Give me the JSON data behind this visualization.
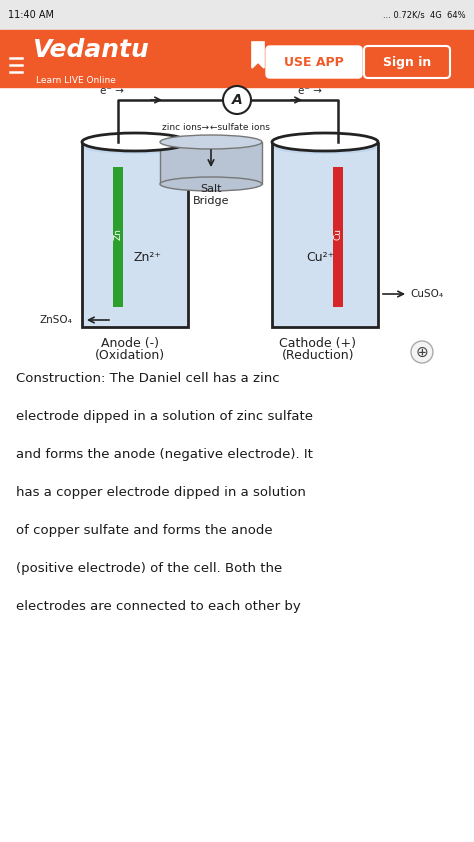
{
  "bg_color": "#ffffff",
  "status_bar_bg": "#e8e8e8",
  "status_bar_text": "11:40 AM",
  "status_bar_right": "... 0.72K/s  4G  64%",
  "header_bg": "#f05a28",
  "header_logo": "Vedantu",
  "header_sub": "Learn LIVE Online",
  "header_btn1": "USE APP",
  "header_btn2": "Sign in",
  "solution_color": "#b8d0e8",
  "zn_electrode_color": "#2ca02c",
  "cu_electrode_color": "#d62728",
  "salt_bridge_color": "#b8c4d4",
  "wire_color": "#222222",
  "body_text": "Construction: The Daniel cell has a zinc\nelectrode dipped in a solution of zinc sulfate\nand forms the anode (negative electrode). It\nhas a copper electrode dipped in a solution\nof copper sulfate and forms the anode\n(positive electrode) of the cell. Both the\nelectrodes are connected to each other by"
}
